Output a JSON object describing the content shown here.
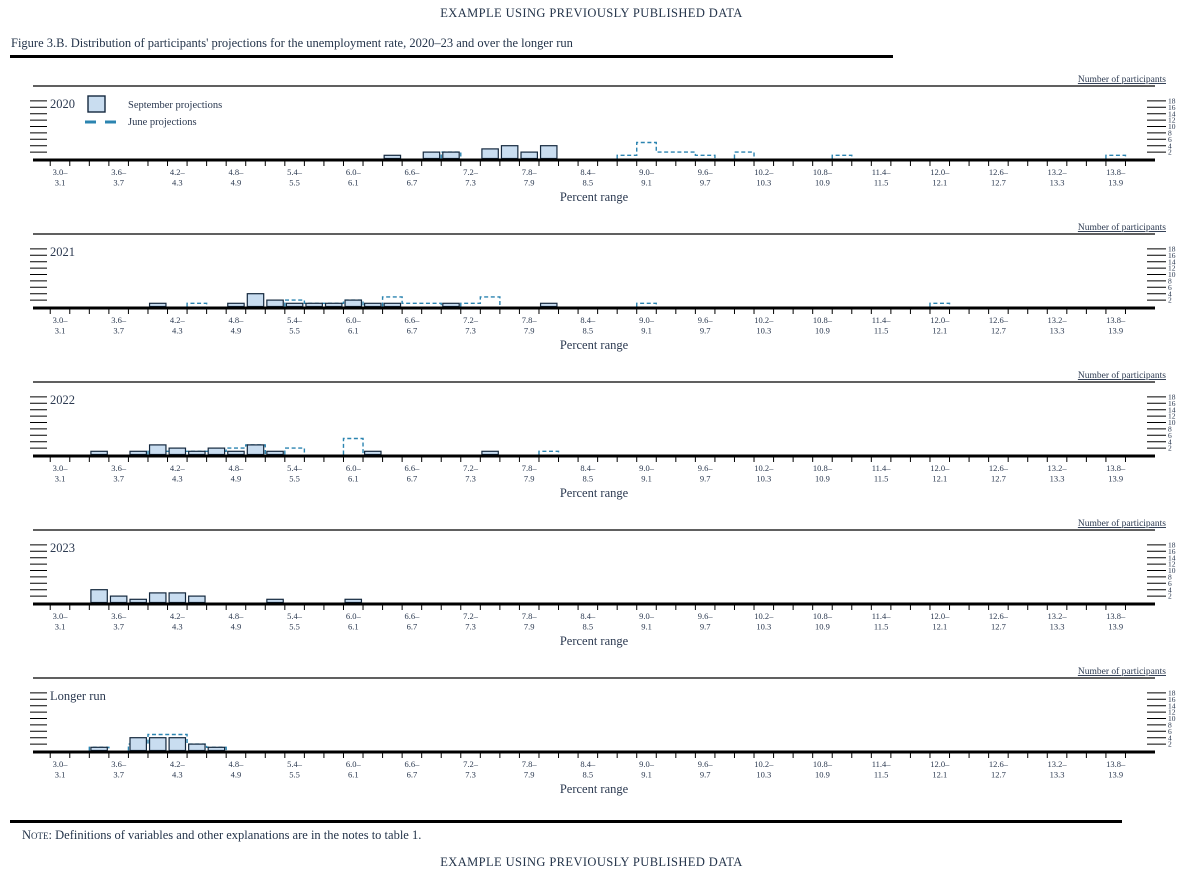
{
  "page": {
    "header_title": "EXAMPLE USING PREVIOUSLY PUBLISHED DATA",
    "figure_caption": "Figure 3.B. Distribution of participants' projections for the unemployment rate, 2020–23 and over the longer run",
    "note_label": "Note:",
    "note_text": " Definitions of variables and other explanations are in the notes to table 1.",
    "footer_title": "EXAMPLE USING PREVIOUSLY PUBLISHED DATA"
  },
  "chart_data": {
    "type": "bar",
    "subtype": "histogram-panels",
    "xlabel": "Percent range",
    "y_axis_label": "Number of participants",
    "y_ticks": [
      2,
      4,
      6,
      8,
      10,
      12,
      14,
      16,
      18
    ],
    "y_max": 18,
    "bin_width": 0.2,
    "bin_start": 3.0,
    "bin_count": 55,
    "x_tick_labels": [
      "3.0–3.1",
      "3.6–3.7",
      "4.2–4.3",
      "4.8–4.9",
      "5.4–5.5",
      "6.0–6.1",
      "6.6–6.7",
      "7.2–7.3",
      "7.8–7.9",
      "8.4–8.5",
      "9.0–9.1",
      "9.6–9.7",
      "10.2–10.3",
      "10.8–10.9",
      "11.4–11.5",
      "12.0–12.1",
      "12.6–12.7",
      "13.2–13.3",
      "13.8–13.9"
    ],
    "legend": [
      {
        "label": "September projections",
        "style": "filled-bar"
      },
      {
        "label": "June projections",
        "style": "dashed-outline"
      }
    ],
    "colors": {
      "september_fill": "#c9ddf0",
      "september_border": "#14283e",
      "june_dashed": "#2b84b0",
      "axis": "#000000",
      "text": "#2b3950"
    },
    "grid": false,
    "legend_position": "top-left-first-panel",
    "panels": [
      {
        "label": "2020",
        "september": [
          {
            "range": "6.4–6.5",
            "count": 1
          },
          {
            "range": "6.8–6.9",
            "count": 2
          },
          {
            "range": "7.0–7.1",
            "count": 2
          },
          {
            "range": "7.4–7.5",
            "count": 3
          },
          {
            "range": "7.6–7.7",
            "count": 4
          },
          {
            "range": "7.8–7.9",
            "count": 2
          },
          {
            "range": "8.0–8.1",
            "count": 4
          }
        ],
        "june": [
          {
            "range": "7.0–7.1",
            "count": 2
          },
          {
            "range": "8.8–8.9",
            "count": 1
          },
          {
            "range": "9.0–9.1",
            "count": 5
          },
          {
            "range": "9.2–9.3",
            "count": 2
          },
          {
            "range": "9.4–9.5",
            "count": 2
          },
          {
            "range": "9.6–9.7",
            "count": 1
          },
          {
            "range": "10.0–10.1",
            "count": 2
          },
          {
            "range": "11.0–11.1",
            "count": 1
          },
          {
            "range": "13.8–13.9",
            "count": 1
          }
        ]
      },
      {
        "label": "2021",
        "september": [
          {
            "range": "4.0–4.1",
            "count": 1
          },
          {
            "range": "4.8–4.9",
            "count": 1
          },
          {
            "range": "5.0–5.1",
            "count": 4
          },
          {
            "range": "5.2–5.3",
            "count": 2
          },
          {
            "range": "5.4–5.5",
            "count": 1
          },
          {
            "range": "5.6–5.7",
            "count": 1
          },
          {
            "range": "5.8–5.9",
            "count": 1
          },
          {
            "range": "6.0–6.1",
            "count": 2
          },
          {
            "range": "6.2–6.3",
            "count": 1
          },
          {
            "range": "6.4–6.5",
            "count": 1
          },
          {
            "range": "7.0–7.1",
            "count": 1
          },
          {
            "range": "8.0–8.1",
            "count": 1
          }
        ],
        "june": [
          {
            "range": "4.4–4.5",
            "count": 1
          },
          {
            "range": "5.4–5.5",
            "count": 2
          },
          {
            "range": "5.6–5.7",
            "count": 1
          },
          {
            "range": "5.8–5.9",
            "count": 1
          },
          {
            "range": "6.0–6.1",
            "count": 2
          },
          {
            "range": "6.4–6.5",
            "count": 3
          },
          {
            "range": "6.6–6.7",
            "count": 1
          },
          {
            "range": "6.8–6.9",
            "count": 1
          },
          {
            "range": "7.2–7.3",
            "count": 1
          },
          {
            "range": "7.4–7.5",
            "count": 3
          },
          {
            "range": "9.0–9.1",
            "count": 1
          },
          {
            "range": "12.0–12.1",
            "count": 1
          }
        ]
      },
      {
        "label": "2022",
        "september": [
          {
            "range": "3.4–3.5",
            "count": 1
          },
          {
            "range": "3.8–3.9",
            "count": 1
          },
          {
            "range": "4.0–4.1",
            "count": 3
          },
          {
            "range": "4.2–4.3",
            "count": 2
          },
          {
            "range": "4.4–4.5",
            "count": 1
          },
          {
            "range": "4.6–4.7",
            "count": 2
          },
          {
            "range": "4.8–4.9",
            "count": 1
          },
          {
            "range": "5.0–5.1",
            "count": 3
          },
          {
            "range": "5.2–5.3",
            "count": 1
          },
          {
            "range": "6.2–6.3",
            "count": 1
          },
          {
            "range": "7.4–7.5",
            "count": 1
          }
        ],
        "june": [
          {
            "range": "4.0–4.1",
            "count": 1
          },
          {
            "range": "4.2–4.3",
            "count": 1
          },
          {
            "range": "4.4–4.5",
            "count": 1
          },
          {
            "range": "4.6–4.7",
            "count": 1
          },
          {
            "range": "4.8–4.9",
            "count": 2
          },
          {
            "range": "5.0–5.1",
            "count": 3
          },
          {
            "range": "5.4–5.5",
            "count": 2
          },
          {
            "range": "6.0–6.1",
            "count": 5
          },
          {
            "range": "8.0–8.1",
            "count": 1
          }
        ]
      },
      {
        "label": "2023",
        "september": [
          {
            "range": "3.4–3.5",
            "count": 4
          },
          {
            "range": "3.6–3.7",
            "count": 2
          },
          {
            "range": "3.8–3.9",
            "count": 1
          },
          {
            "range": "4.0–4.1",
            "count": 3
          },
          {
            "range": "4.2–4.3",
            "count": 3
          },
          {
            "range": "4.4–4.5",
            "count": 2
          },
          {
            "range": "5.2–5.3",
            "count": 1
          },
          {
            "range": "6.0–6.1",
            "count": 1
          }
        ],
        "june": []
      },
      {
        "label": "Longer run",
        "september": [
          {
            "range": "3.4–3.5",
            "count": 1
          },
          {
            "range": "3.8–3.9",
            "count": 4
          },
          {
            "range": "4.0–4.1",
            "count": 4
          },
          {
            "range": "4.2–4.3",
            "count": 4
          },
          {
            "range": "4.4–4.5",
            "count": 2
          },
          {
            "range": "4.6–4.7",
            "count": 1
          }
        ],
        "june": [
          {
            "range": "3.4–3.5",
            "count": 1
          },
          {
            "range": "3.8–3.9",
            "count": 2
          },
          {
            "range": "4.0–4.1",
            "count": 5
          },
          {
            "range": "4.2–4.3",
            "count": 5
          },
          {
            "range": "4.4–4.5",
            "count": 2
          },
          {
            "range": "4.6–4.7",
            "count": 1
          }
        ]
      }
    ]
  }
}
